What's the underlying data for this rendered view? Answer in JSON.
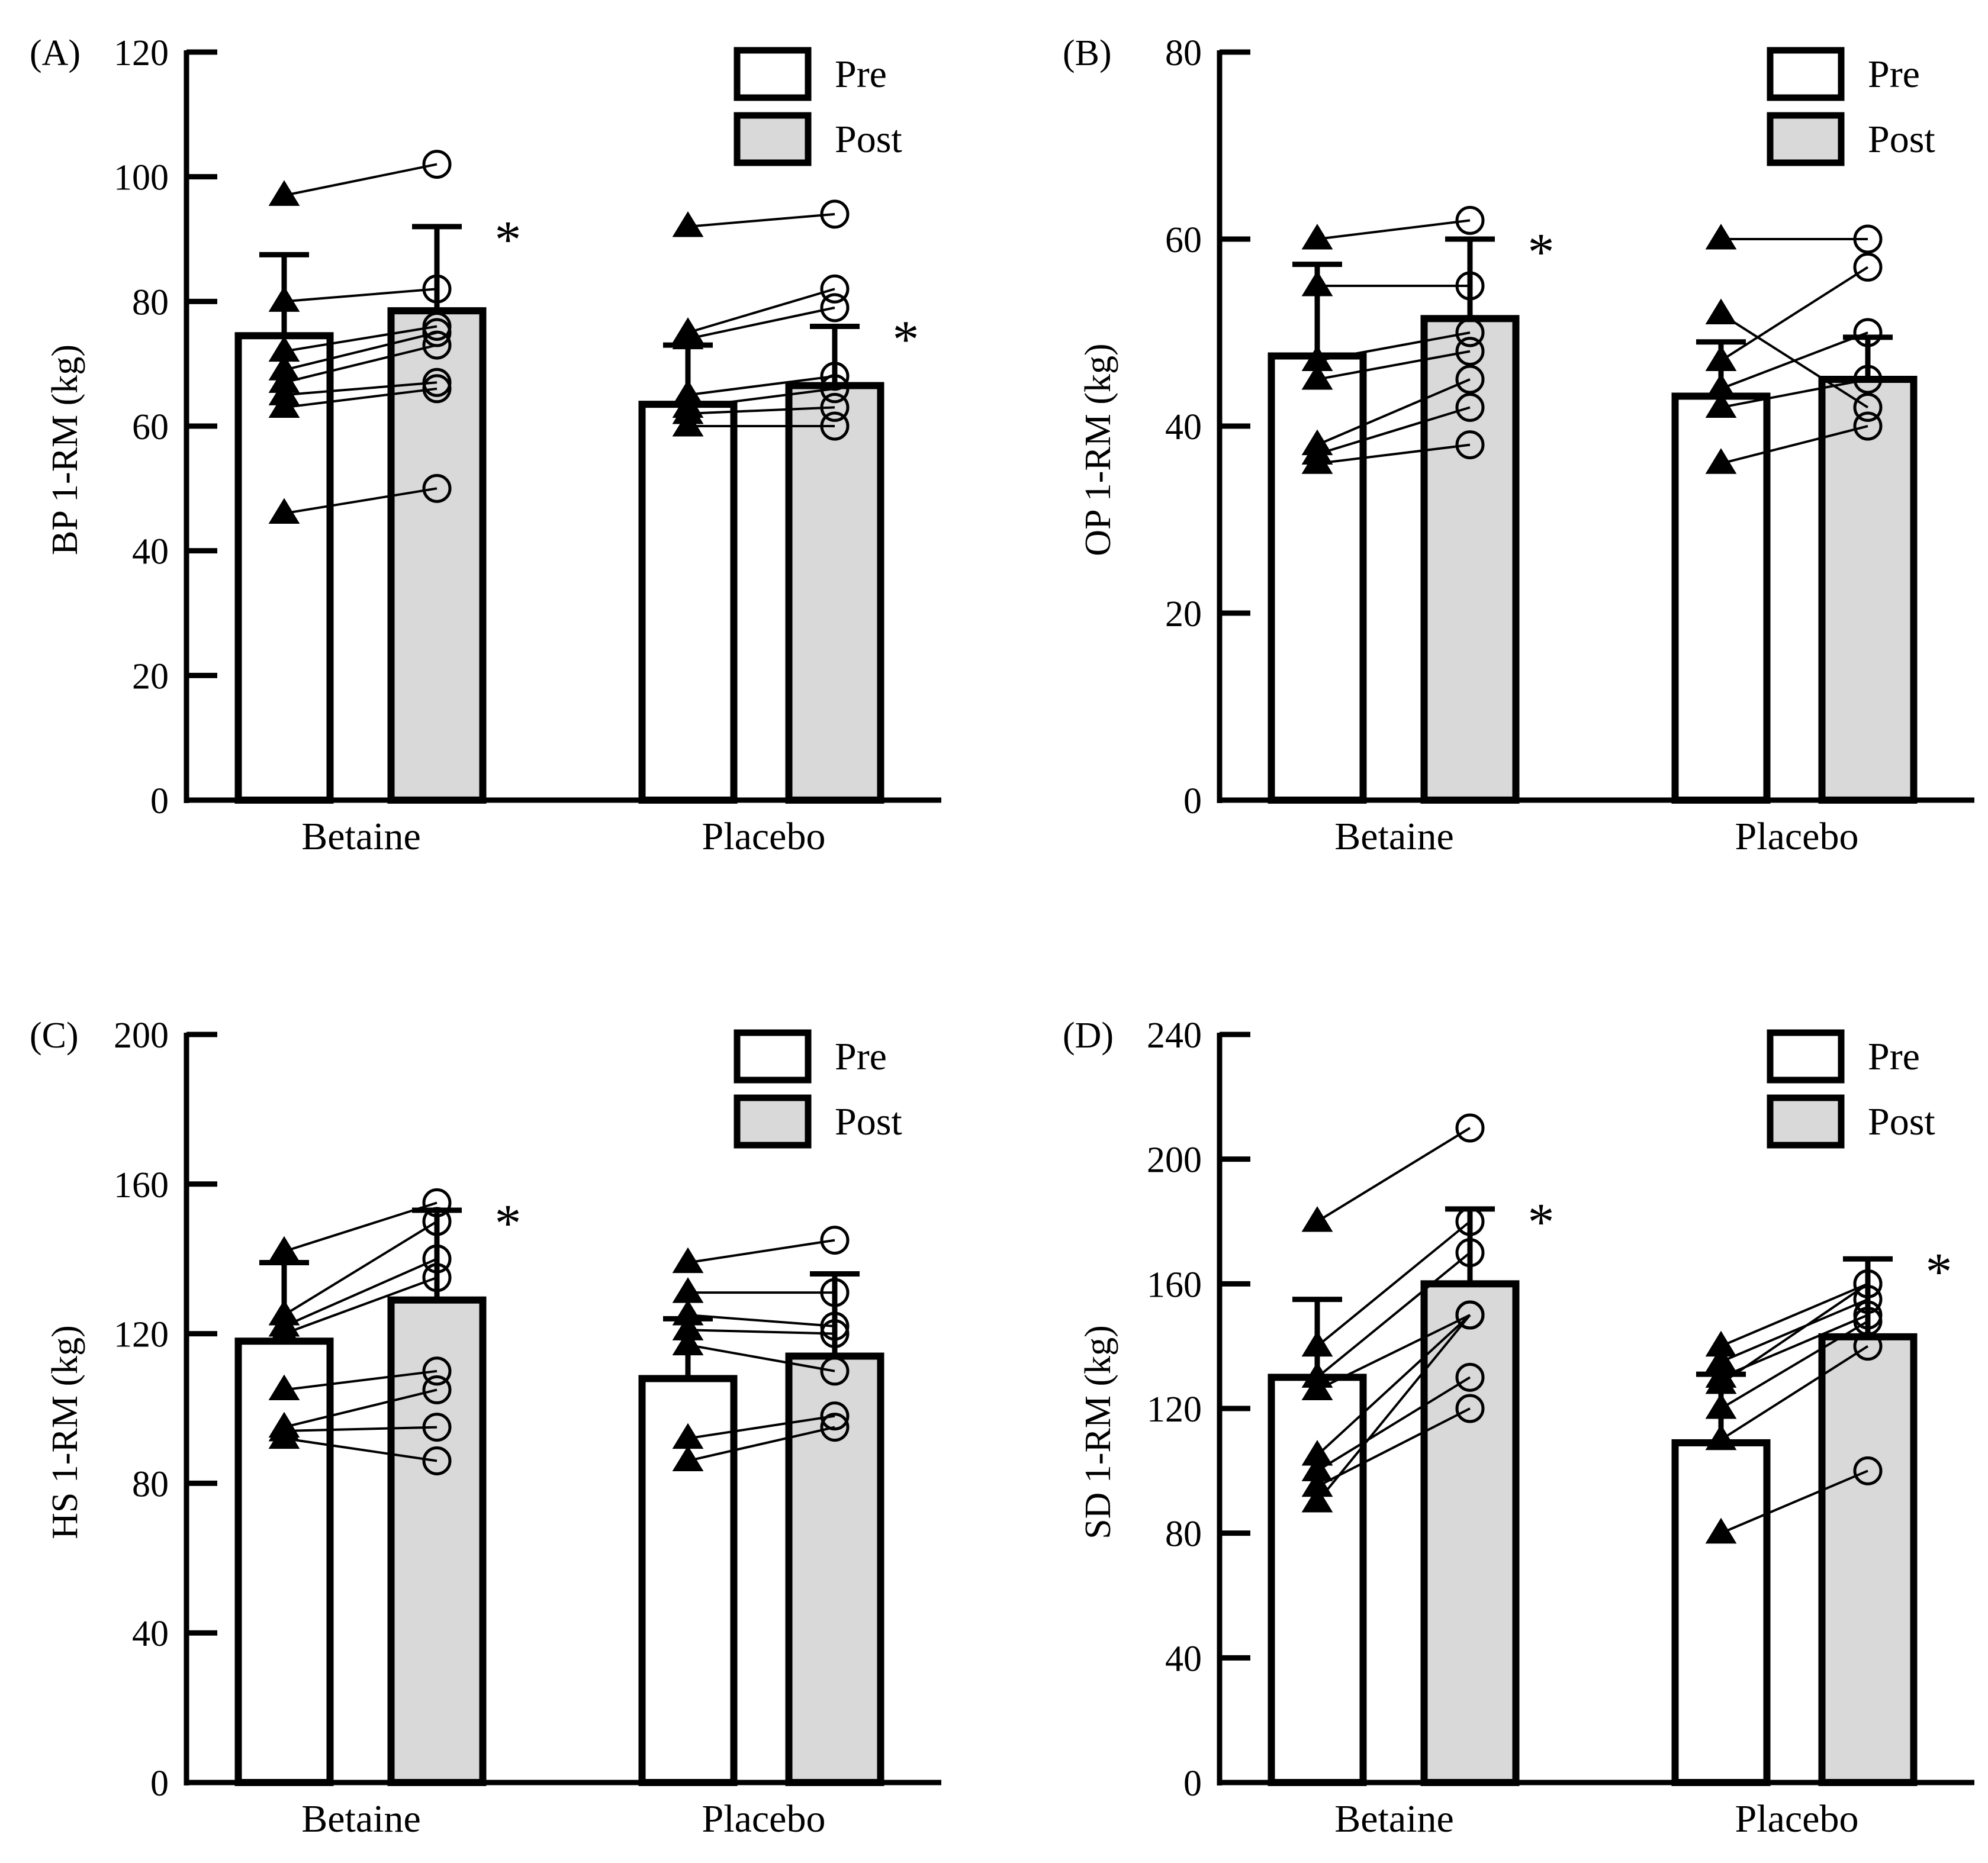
{
  "colors": {
    "pre_fill": "#ffffff",
    "post_fill": "#d9d9d9",
    "stroke": "#000000"
  },
  "legend": {
    "pre": "Pre",
    "post": "Post"
  },
  "groups": [
    "Betaine",
    "Placebo"
  ],
  "chart_data": [
    {
      "panel": "(A)",
      "type": "bar",
      "ylabel": "BP 1-RM (kg)",
      "ylim": [
        0,
        120
      ],
      "yticks": [
        0,
        20,
        40,
        60,
        80,
        100,
        120
      ],
      "categories": [
        "Betaine",
        "Placebo"
      ],
      "series": [
        {
          "name": "Pre",
          "values": [
            74.5,
            63.5
          ],
          "sd": [
            13,
            9.5
          ]
        },
        {
          "name": "Post",
          "values": [
            78.5,
            66.5
          ],
          "sd": [
            13.5,
            9.5
          ]
        }
      ],
      "individuals": {
        "Betaine": [
          [
            97,
            102
          ],
          [
            80,
            82
          ],
          [
            72,
            76
          ],
          [
            69,
            75
          ],
          [
            67,
            73
          ],
          [
            65,
            67
          ],
          [
            63,
            66
          ],
          [
            46,
            50
          ]
        ],
        "Placebo": [
          [
            92,
            94
          ],
          [
            75,
            82
          ],
          [
            74,
            79
          ],
          [
            65,
            68
          ],
          [
            63,
            66
          ],
          [
            62,
            63
          ],
          [
            60,
            60
          ]
        ]
      },
      "significance": [
        "*",
        "*"
      ]
    },
    {
      "panel": "(B)",
      "type": "bar",
      "ylabel": "OP 1-RM (kg)",
      "ylim": [
        0,
        80
      ],
      "yticks": [
        0,
        20,
        40,
        60,
        80
      ],
      "categories": [
        "Betaine",
        "Placebo"
      ],
      "series": [
        {
          "name": "Pre",
          "values": [
            47.5,
            43.2
          ],
          "sd": [
            9.8,
            5.8
          ]
        },
        {
          "name": "Post",
          "values": [
            51.5,
            45
          ],
          "sd": [
            8.5,
            4.5
          ]
        }
      ],
      "individuals": {
        "Betaine": [
          [
            60,
            62
          ],
          [
            55,
            55
          ],
          [
            47,
            50
          ],
          [
            45,
            48
          ],
          [
            38,
            45
          ],
          [
            37,
            42
          ],
          [
            36,
            38
          ]
        ],
        "Placebo": [
          [
            60,
            60
          ],
          [
            52,
            42
          ],
          [
            47,
            57
          ],
          [
            44,
            50
          ],
          [
            42,
            45
          ],
          [
            36,
            40
          ]
        ]
      },
      "significance": [
        "*",
        ""
      ]
    },
    {
      "panel": "(C)",
      "type": "bar",
      "ylabel": "HS 1-RM (kg)",
      "ylim": [
        0,
        200
      ],
      "yticks": [
        0,
        40,
        80,
        120,
        160,
        200
      ],
      "categories": [
        "Betaine",
        "Placebo"
      ],
      "series": [
        {
          "name": "Pre",
          "values": [
            118,
            108
          ],
          "sd": [
            21,
            16
          ]
        },
        {
          "name": "Post",
          "values": [
            129,
            114
          ],
          "sd": [
            24,
            22
          ]
        }
      ],
      "individuals": {
        "Betaine": [
          [
            142,
            155
          ],
          [
            125,
            150
          ],
          [
            122,
            140
          ],
          [
            120,
            135
          ],
          [
            105,
            110
          ],
          [
            95,
            105
          ],
          [
            94,
            95
          ],
          [
            92,
            86
          ]
        ],
        "Placebo": [
          [
            139,
            145
          ],
          [
            131,
            131
          ],
          [
            125,
            122
          ],
          [
            121,
            120
          ],
          [
            117,
            110
          ],
          [
            92,
            98
          ],
          [
            86,
            95
          ]
        ]
      },
      "significance": [
        "*",
        ""
      ]
    },
    {
      "panel": "(D)",
      "type": "bar",
      "ylabel": "SD 1-RM (kg)",
      "ylim": [
        0,
        240
      ],
      "yticks": [
        0,
        40,
        80,
        120,
        160,
        200,
        240
      ],
      "categories": [
        "Betaine",
        "Placebo"
      ],
      "series": [
        {
          "name": "Pre",
          "values": [
            130,
            109
          ],
          "sd": [
            25,
            22
          ]
        },
        {
          "name": "Post",
          "values": [
            160,
            143
          ],
          "sd": [
            24,
            25
          ]
        }
      ],
      "individuals": {
        "Betaine": [
          [
            180,
            210
          ],
          [
            140,
            180
          ],
          [
            130,
            170
          ],
          [
            126,
            150
          ],
          [
            105,
            150
          ],
          [
            100,
            130
          ],
          [
            95,
            120
          ],
          [
            90,
            150
          ]
        ],
        "Placebo": [
          [
            140,
            160
          ],
          [
            135,
            155
          ],
          [
            130,
            150
          ],
          [
            128,
            160
          ],
          [
            120,
            148
          ],
          [
            110,
            140
          ],
          [
            80,
            100
          ]
        ]
      },
      "significance": [
        "*",
        "*"
      ]
    }
  ]
}
